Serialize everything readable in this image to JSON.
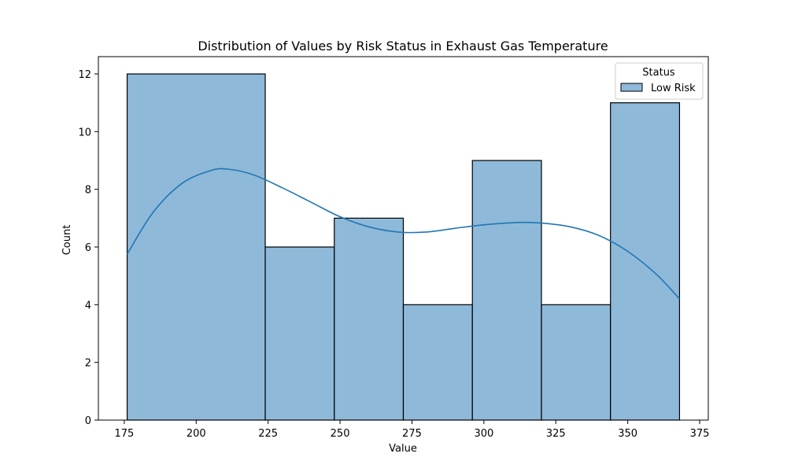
{
  "chart_data": {
    "type": "histogram",
    "title": "Distribution of Values by Risk Status in Exhaust Gas Temperature",
    "xlabel": "Value",
    "ylabel": "Count",
    "xlim": [
      166,
      378
    ],
    "ylim": [
      0,
      12.6
    ],
    "xticks": [
      175,
      200,
      225,
      250,
      275,
      300,
      325,
      350,
      375
    ],
    "yticks": [
      0,
      2,
      4,
      6,
      8,
      10,
      12
    ],
    "grid": false,
    "legend": {
      "title": "Status",
      "placement": "top-right",
      "entries": [
        {
          "label": "Low Risk",
          "color": "#8fb9d9"
        }
      ]
    },
    "bars": [
      {
        "x0": 176,
        "x1": 224,
        "count": 12
      },
      {
        "x0": 224,
        "x1": 248,
        "count": 6
      },
      {
        "x0": 248,
        "x1": 272,
        "count": 7
      },
      {
        "x0": 272,
        "x1": 296,
        "count": 4
      },
      {
        "x0": 296,
        "x1": 320,
        "count": 9
      },
      {
        "x0": 320,
        "x1": 344,
        "count": 4
      },
      {
        "x0": 344,
        "x1": 368,
        "count": 11
      }
    ],
    "series": [
      {
        "kind": "kde",
        "color": "#1f77b4",
        "x": [
          176,
          185,
          195,
          205,
          211,
          220,
          230,
          240,
          250,
          260,
          270,
          280,
          290,
          300,
          312,
          320,
          330,
          340,
          350,
          360,
          368
        ],
        "y": [
          5.75,
          7.2,
          8.2,
          8.65,
          8.7,
          8.5,
          8.05,
          7.55,
          7.05,
          6.7,
          6.52,
          6.52,
          6.65,
          6.77,
          6.85,
          6.83,
          6.7,
          6.4,
          5.85,
          5.05,
          4.2
        ]
      }
    ],
    "colors": {
      "bar_fill": "#8fb9d9",
      "bar_edge": "#000000",
      "kde": "#1f77b4"
    }
  }
}
